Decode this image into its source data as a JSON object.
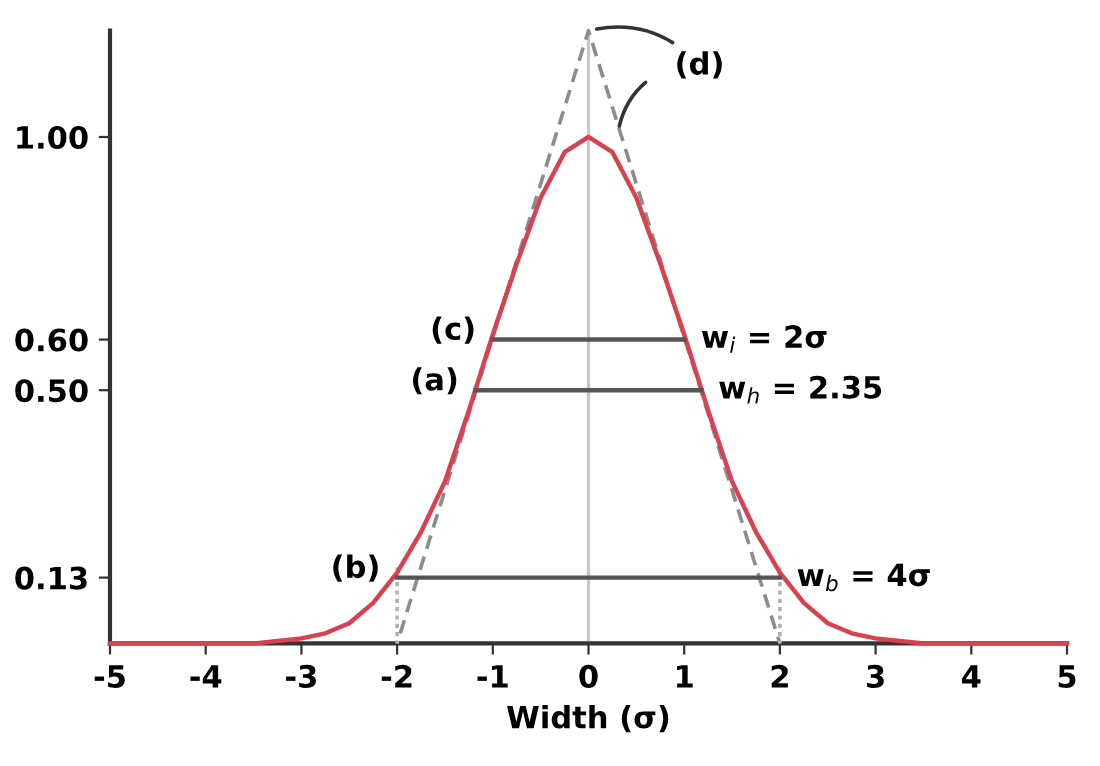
{
  "chart_data": {
    "type": "line",
    "xlabel": "Width (σ)",
    "xlim": [
      -5,
      5
    ],
    "xticks": [
      -5,
      -4,
      -3,
      -2,
      -1,
      0,
      1,
      2,
      3,
      4,
      5
    ],
    "ylim": [
      0,
      1.21
    ],
    "yticks": [
      {
        "value": 0.13,
        "label": "0.13"
      },
      {
        "value": 0.5,
        "label": "0.50"
      },
      {
        "value": 0.6,
        "label": "0.60"
      },
      {
        "value": 1.0,
        "label": "1.00"
      }
    ],
    "grid": false,
    "legend": false,
    "marker": "none",
    "ref_lines": [
      {
        "axis": "x",
        "value": 0,
        "color": "#c8c8c8",
        "line_style": "solid"
      }
    ],
    "series": [
      {
        "x": [
          -2,
          0,
          2
        ],
        "values": [
          0,
          1.21,
          0
        ],
        "color": "#8c8c8c",
        "line_style": "dashed"
      },
      {
        "x": [
          -2,
          -2
        ],
        "values": [
          0,
          0.15
        ],
        "color": "#b0b0b0",
        "line_style": "dotted"
      },
      {
        "x": [
          2,
          2
        ],
        "values": [
          0,
          0.15
        ],
        "color": "#b0b0b0",
        "line_style": "dotted"
      },
      {
        "x": [
          -5,
          -4.5,
          -4,
          -3.5,
          -3,
          -2.75,
          -2.5,
          -2.25,
          -2,
          -1.75,
          -1.5,
          -1.25,
          -1,
          -0.75,
          -0.5,
          -0.25,
          0,
          0.25,
          0.5,
          0.75,
          1,
          1.25,
          1.5,
          1.75,
          2,
          2.25,
          2.5,
          2.75,
          3,
          3.5,
          4,
          4.5,
          5
        ],
        "values": [
          0,
          0,
          0,
          0,
          0.01,
          0.02,
          0.04,
          0.08,
          0.14,
          0.22,
          0.32,
          0.46,
          0.61,
          0.75,
          0.88,
          0.97,
          1.0,
          0.97,
          0.88,
          0.75,
          0.61,
          0.46,
          0.32,
          0.22,
          0.14,
          0.08,
          0.04,
          0.02,
          0.01,
          0,
          0,
          0,
          0
        ],
        "color": "#d9414f",
        "line_style": "solid"
      },
      {
        "x": [
          -1,
          1
        ],
        "values": [
          0.6,
          0.6
        ],
        "color": "#555555",
        "line_style": "solid"
      },
      {
        "x": [
          -1.18,
          1.18
        ],
        "values": [
          0.5,
          0.5
        ],
        "color": "#555555",
        "line_style": "solid"
      },
      {
        "x": [
          -2,
          2
        ],
        "values": [
          0.13,
          0.13
        ],
        "color": "#555555",
        "line_style": "solid"
      }
    ],
    "annotations": [
      {
        "text": "(c)",
        "x": -1,
        "y": 0.6
      },
      {
        "text": "w$_{i}$ = 2σ",
        "x": 1,
        "y": 0.6
      },
      {
        "text": "(a)",
        "x": -1.18,
        "y": 0.5
      },
      {
        "text": "w$_{h}$ = 2.35",
        "x": 1.18,
        "y": 0.5
      },
      {
        "text": "(b)",
        "x": -2,
        "y": 0.13
      },
      {
        "text": "w$_{b}$ = 4σ",
        "x": 2,
        "y": 0.13
      },
      {
        "text": "(d)",
        "x": 0,
        "y": 1.21
      }
    ]
  }
}
